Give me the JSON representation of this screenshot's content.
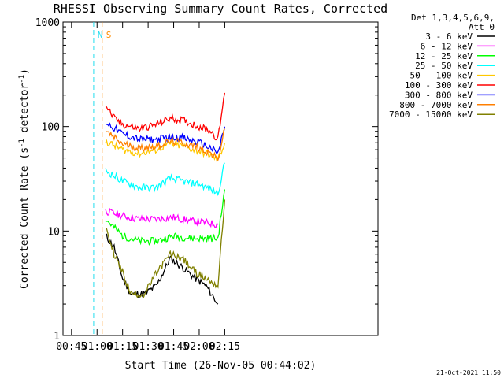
{
  "chart_data": {
    "type": "line",
    "title": "RHESSI Observing Summary Count Rates, Corrected",
    "xlabel": "Start Time (26-Nov-05 00:44:02)",
    "ylabel_main": "Corrected Count Rate (s",
    "ylabel_sup1": "-1",
    "ylabel_mid": " detector",
    "ylabel_sup2": "-1",
    "ylabel_end": ")",
    "yscale": "log",
    "ylim": [
      1,
      1000
    ],
    "xlim_minutes": [
      40,
      225
    ],
    "x_ticks": [
      {
        "label": "00:45",
        "min": 45
      },
      {
        "label": "01:00",
        "min": 60
      },
      {
        "label": "01:15",
        "min": 75
      },
      {
        "label": "01:30",
        "min": 90
      },
      {
        "label": "01:45",
        "min": 105
      },
      {
        "label": "02:00",
        "min": 120
      },
      {
        "label": "02:15",
        "min": 135
      }
    ],
    "y_ticks": [
      {
        "label": "1",
        "value": 1
      },
      {
        "label": "10",
        "value": 10
      },
      {
        "label": "100",
        "value": 100
      },
      {
        "label": "1000",
        "value": 1000
      }
    ],
    "legend_header": [
      "Det 1,3,4,5,6,9,",
      "Att 0"
    ],
    "legend_placement": "right",
    "markers": [
      {
        "label": "N",
        "min": 58,
        "color": "#22ddee"
      },
      {
        "label": "S",
        "min": 63,
        "color": "#ff8c00"
      }
    ],
    "series": [
      {
        "name": "3 - 6 keV",
        "color": "#000000",
        "points": [
          [
            65,
            9
          ],
          [
            70,
            7
          ],
          [
            75,
            3.5
          ],
          [
            80,
            2.5
          ],
          [
            88,
            2.5
          ],
          [
            95,
            3
          ],
          [
            103,
            5.5
          ],
          [
            110,
            4.5
          ],
          [
            118,
            3.5
          ],
          [
            124,
            3
          ],
          [
            131,
            2
          ]
        ]
      },
      {
        "name": "6 - 12 keV",
        "color": "#ff00ff",
        "points": [
          [
            65,
            15.5
          ],
          [
            75,
            14
          ],
          [
            85,
            13
          ],
          [
            95,
            13
          ],
          [
            105,
            13.5
          ],
          [
            115,
            12.5
          ],
          [
            125,
            12
          ],
          [
            131,
            11.5
          ]
        ]
      },
      {
        "name": "12 - 25 keV",
        "color": "#00ff00",
        "points": [
          [
            65,
            13
          ],
          [
            75,
            9
          ],
          [
            85,
            8
          ],
          [
            95,
            8
          ],
          [
            105,
            9
          ],
          [
            115,
            8.5
          ],
          [
            125,
            8.5
          ],
          [
            131,
            8.5
          ],
          [
            135,
            25
          ]
        ]
      },
      {
        "name": "25 - 50 keV",
        "color": "#00ffff",
        "points": [
          [
            65,
            38
          ],
          [
            75,
            30
          ],
          [
            85,
            26
          ],
          [
            95,
            26
          ],
          [
            103,
            32
          ],
          [
            110,
            30
          ],
          [
            120,
            28
          ],
          [
            127,
            25
          ],
          [
            131,
            23
          ],
          [
            135,
            45
          ]
        ]
      },
      {
        "name": "50 - 100 keV",
        "color": "#ffc800",
        "points": [
          [
            65,
            72
          ],
          [
            75,
            60
          ],
          [
            85,
            55
          ],
          [
            95,
            60
          ],
          [
            103,
            68
          ],
          [
            110,
            65
          ],
          [
            120,
            58
          ],
          [
            127,
            53
          ],
          [
            131,
            48
          ],
          [
            135,
            70
          ]
        ]
      },
      {
        "name": "100 - 300 keV",
        "color": "#ff0000",
        "points": [
          [
            65,
            160
          ],
          [
            70,
            120
          ],
          [
            75,
            105
          ],
          [
            85,
            95
          ],
          [
            95,
            105
          ],
          [
            103,
            120
          ],
          [
            110,
            115
          ],
          [
            120,
            100
          ],
          [
            127,
            90
          ],
          [
            131,
            75
          ],
          [
            135,
            210
          ]
        ]
      },
      {
        "name": "300 - 800 keV",
        "color": "#0000ff",
        "points": [
          [
            65,
            110
          ],
          [
            75,
            85
          ],
          [
            85,
            75
          ],
          [
            95,
            75
          ],
          [
            103,
            80
          ],
          [
            110,
            78
          ],
          [
            120,
            70
          ],
          [
            127,
            62
          ],
          [
            131,
            55
          ],
          [
            135,
            100
          ]
        ]
      },
      {
        "name": "800 - 7000 keV",
        "color": "#ff7f00",
        "points": [
          [
            65,
            90
          ],
          [
            75,
            68
          ],
          [
            85,
            62
          ],
          [
            95,
            65
          ],
          [
            103,
            72
          ],
          [
            110,
            70
          ],
          [
            120,
            63
          ],
          [
            127,
            55
          ],
          [
            131,
            48
          ],
          [
            135,
            95
          ]
        ]
      },
      {
        "name": "7000 - 15000 keV",
        "color": "#808000",
        "points": [
          [
            65,
            11
          ],
          [
            70,
            6
          ],
          [
            75,
            4
          ],
          [
            80,
            2.5
          ],
          [
            88,
            2.5
          ],
          [
            95,
            4
          ],
          [
            103,
            6
          ],
          [
            110,
            5.5
          ],
          [
            118,
            4
          ],
          [
            124,
            3.5
          ],
          [
            131,
            3
          ],
          [
            135,
            20
          ]
        ]
      }
    ]
  },
  "timestamp": "21-Oct-2021 11:50"
}
